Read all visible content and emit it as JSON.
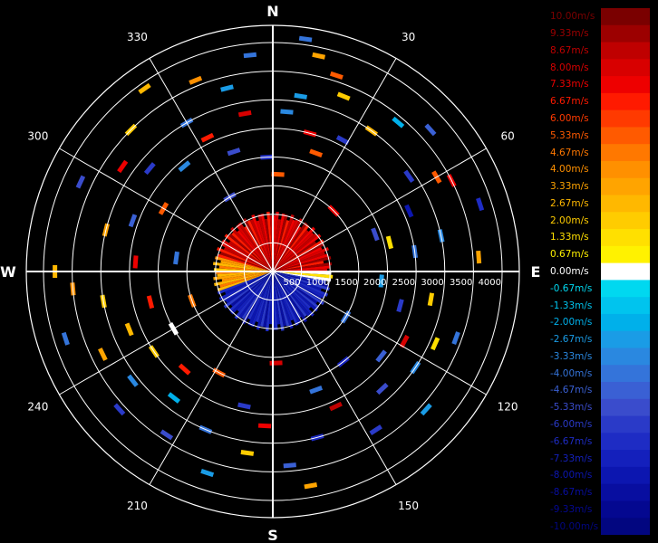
{
  "chart_data": {
    "type": "polar-ppi",
    "compass": {
      "north": "N",
      "east": "E",
      "south": "S",
      "west": "W"
    },
    "azimuth_labels": [
      "30",
      "60",
      "120",
      "150",
      "210",
      "240",
      "300",
      "330"
    ],
    "range_labels": [
      "500",
      "1000",
      "1500",
      "2000",
      "2500",
      "3000",
      "3500",
      "4000"
    ],
    "range_max": 4300,
    "ring_ranges": [
      500,
      1000,
      1500,
      2000,
      2500,
      3000,
      3500,
      4000
    ],
    "colorbar": {
      "labels": [
        "10.00m/s",
        "9.33m/s",
        "8.67m/s",
        "8.00m/s",
        "7.33m/s",
        "6.67m/s",
        "6.00m/s",
        "5.33m/s",
        "4.67m/s",
        "4.00m/s",
        "3.33m/s",
        "2.67m/s",
        "2.00m/s",
        "1.33m/s",
        "0.67m/s",
        "0.00m/s",
        "-0.67m/s",
        "-1.33m/s",
        "-2.00m/s",
        "-2.67m/s",
        "-3.33m/s",
        "-4.00m/s",
        "-4.67m/s",
        "-5.33m/s",
        "-6.00m/s",
        "-6.67m/s",
        "-7.33m/s",
        "-8.00m/s",
        "-8.67m/s",
        "-9.33m/s",
        "-10.00m/s"
      ],
      "colors": [
        "#7a0000",
        "#9c0000",
        "#bf0000",
        "#d80000",
        "#ee0000",
        "#ff1a00",
        "#ff3a00",
        "#ff5a00",
        "#ff7800",
        "#ff9000",
        "#ffa400",
        "#ffb800",
        "#ffcc00",
        "#ffe000",
        "#fff200",
        "#ffffff",
        "#00d8f0",
        "#00c4ee",
        "#00b0ea",
        "#1a9ce6",
        "#2a88e0",
        "#3474da",
        "#3a60d4",
        "#3a4ccc",
        "#2a3ac8",
        "#1e2cc4",
        "#1420bc",
        "#0c16b0",
        "#080ea0",
        "#040890",
        "#020680"
      ]
    },
    "velocity_field": {
      "max_range": 1050,
      "regions": [
        {
          "from_az": 285,
          "to_az": 90,
          "velocity": 8.0
        },
        {
          "from_az": 90,
          "to_az": 100,
          "velocity": 0.67
        },
        {
          "from_az": 100,
          "to_az": 250,
          "velocity": -7.3
        },
        {
          "from_az": 250,
          "to_az": 285,
          "velocity": 3.5
        }
      ]
    },
    "echoes": [
      {
        "az": 8,
        "r": 4100,
        "v": -4.0
      },
      {
        "az": 12,
        "r": 3850,
        "v": 3.3
      },
      {
        "az": 18,
        "r": 3600,
        "v": 5.3
      },
      {
        "az": 22,
        "r": 3300,
        "v": 2.0
      },
      {
        "az": 9,
        "r": 3100,
        "v": -2.7
      },
      {
        "az": 5,
        "r": 2800,
        "v": -3.3
      },
      {
        "az": 15,
        "r": 2500,
        "v": 7.3
      },
      {
        "az": 20,
        "r": 2200,
        "v": 5.3
      },
      {
        "az": 28,
        "r": 2600,
        "v": -6.0
      },
      {
        "az": 35,
        "r": 3000,
        "v": 2.7
      },
      {
        "az": 40,
        "r": 3400,
        "v": -2.0
      },
      {
        "az": 48,
        "r": 3700,
        "v": -4.7
      },
      {
        "az": 55,
        "r": 2900,
        "v": -6.0
      },
      {
        "az": 60,
        "r": 3300,
        "v": 5.3
      },
      {
        "az": 63,
        "r": 3500,
        "v": 7.3
      },
      {
        "az": 66,
        "r": 2600,
        "v": -8.0
      },
      {
        "az": 72,
        "r": 3800,
        "v": -6.7
      },
      {
        "az": 78,
        "r": 3000,
        "v": -3.3
      },
      {
        "az": 82,
        "r": 2500,
        "v": -4.0
      },
      {
        "az": 86,
        "r": 3600,
        "v": 3.3
      },
      {
        "az": 76,
        "r": 2100,
        "v": 1.3
      },
      {
        "az": 70,
        "r": 1900,
        "v": -5.3
      },
      {
        "az": 95,
        "r": 1900,
        "v": -2.7
      },
      {
        "az": 100,
        "r": 2800,
        "v": 2.0
      },
      {
        "az": 105,
        "r": 2300,
        "v": -6.0
      },
      {
        "az": 110,
        "r": 3400,
        "v": -4.0
      },
      {
        "az": 114,
        "r": 3100,
        "v": 1.3
      },
      {
        "az": 118,
        "r": 2600,
        "v": 8.0
      },
      {
        "az": 124,
        "r": 3000,
        "v": -3.3
      },
      {
        "az": 128,
        "r": 2400,
        "v": -4.7
      },
      {
        "az": 132,
        "r": 3600,
        "v": -2.7
      },
      {
        "az": 137,
        "r": 2800,
        "v": -5.3
      },
      {
        "az": 142,
        "r": 2000,
        "v": -7.3
      },
      {
        "az": 147,
        "r": 3300,
        "v": -6.0
      },
      {
        "az": 155,
        "r": 2600,
        "v": 8.7
      },
      {
        "az": 160,
        "r": 2200,
        "v": -4.0
      },
      {
        "az": 165,
        "r": 3000,
        "v": -6.7
      },
      {
        "az": 170,
        "r": 3800,
        "v": 3.3
      },
      {
        "az": 175,
        "r": 3400,
        "v": -4.7
      },
      {
        "az": 178,
        "r": 1600,
        "v": 8.0
      },
      {
        "az": 183,
        "r": 2700,
        "v": 7.3
      },
      {
        "az": 188,
        "r": 3200,
        "v": 2.0
      },
      {
        "az": 192,
        "r": 2400,
        "v": -6.0
      },
      {
        "az": 198,
        "r": 3700,
        "v": -2.7
      },
      {
        "az": 203,
        "r": 3000,
        "v": -4.0
      },
      {
        "az": 208,
        "r": 2000,
        "v": 5.3
      },
      {
        "az": 213,
        "r": 3400,
        "v": -5.3
      },
      {
        "az": 218,
        "r": 2800,
        "v": -2.0
      },
      {
        "az": 222,
        "r": 2300,
        "v": 6.7
      },
      {
        "az": 228,
        "r": 3600,
        "v": -6.0
      },
      {
        "az": 232,
        "r": 3100,
        "v": -3.3
      },
      {
        "az": 236,
        "r": 2500,
        "v": 2.0
      },
      {
        "az": 240,
        "r": 2000,
        "v": 0.0
      },
      {
        "az": 244,
        "r": 3300,
        "v": 3.3
      },
      {
        "az": 248,
        "r": 2700,
        "v": 2.7
      },
      {
        "az": 252,
        "r": 3800,
        "v": -4.0
      },
      {
        "az": 256,
        "r": 2200,
        "v": 6.7
      },
      {
        "az": 260,
        "r": 3000,
        "v": 2.0
      },
      {
        "az": 265,
        "r": 3500,
        "v": 4.0
      },
      {
        "az": 270,
        "r": 3800,
        "v": 2.7
      },
      {
        "az": 274,
        "r": 2400,
        "v": 7.3
      },
      {
        "az": 278,
        "r": 1700,
        "v": -4.0
      },
      {
        "az": 284,
        "r": 3000,
        "v": 3.3
      },
      {
        "az": 290,
        "r": 2600,
        "v": -4.7
      },
      {
        "az": 295,
        "r": 3700,
        "v": -5.3
      },
      {
        "az": 300,
        "r": 2200,
        "v": 5.3
      },
      {
        "az": 305,
        "r": 3200,
        "v": 7.3
      },
      {
        "az": 310,
        "r": 2800,
        "v": -6.0
      },
      {
        "az": 315,
        "r": 3500,
        "v": 2.0
      },
      {
        "az": 320,
        "r": 2400,
        "v": -3.3
      },
      {
        "az": 325,
        "r": 3900,
        "v": 2.7
      },
      {
        "az": 330,
        "r": 3000,
        "v": -4.0
      },
      {
        "az": 334,
        "r": 2600,
        "v": 6.7
      },
      {
        "az": 338,
        "r": 3600,
        "v": 4.0
      },
      {
        "az": 342,
        "r": 2200,
        "v": -5.3
      },
      {
        "az": 346,
        "r": 3300,
        "v": -2.7
      },
      {
        "az": 350,
        "r": 2800,
        "v": 8.0
      },
      {
        "az": 354,
        "r": 3800,
        "v": -4.0
      },
      {
        "az": 357,
        "r": 2000,
        "v": -6.7
      },
      {
        "az": 3,
        "r": 1700,
        "v": 5.3
      },
      {
        "az": 45,
        "r": 1500,
        "v": 7.3
      },
      {
        "az": 122,
        "r": 1500,
        "v": -4.0
      },
      {
        "az": 250,
        "r": 1500,
        "v": 4.7
      },
      {
        "az": 330,
        "r": 1500,
        "v": -5.3
      }
    ]
  }
}
